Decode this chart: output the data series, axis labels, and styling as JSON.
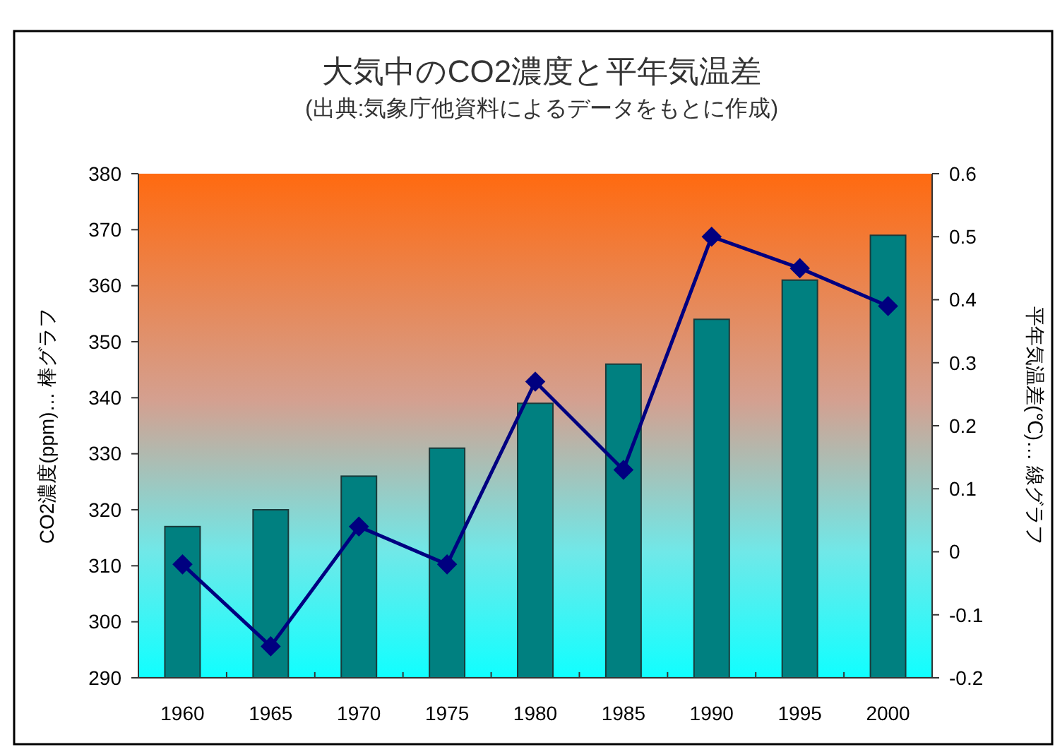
{
  "chart_data": {
    "type": "bar",
    "title": "大気中のCO2濃度と平年気温差",
    "subtitle": "(出典:気象庁他資料によるデータをもとに作成)",
    "ylabel": "CO2濃度(ppm)… 棒グラフ",
    "y2label": "平年気温差(℃)… 線グラフ",
    "categories": [
      "1960",
      "1965",
      "1970",
      "1975",
      "1980",
      "1985",
      "1990",
      "1995",
      "2000"
    ],
    "series": [
      {
        "color": "#008080",
        "values": [
          317,
          320,
          326,
          331,
          339,
          346,
          354,
          361,
          369
        ]
      },
      {
        "type": "line",
        "axis": "y2",
        "color": "#000080",
        "marker": "diamond",
        "values": [
          -0.02,
          -0.15,
          0.04,
          -0.02,
          0.27,
          0.13,
          0.5,
          0.45,
          0.39
        ]
      }
    ],
    "ylim": [
      290,
      380
    ],
    "yticks": [
      290,
      300,
      310,
      320,
      330,
      340,
      350,
      360,
      370,
      380
    ],
    "y2lim": [
      -0.2,
      0.6
    ],
    "y2ticks": [
      -0.2,
      -0.1,
      0,
      0.1,
      0.2,
      0.3,
      0.4,
      0.5,
      0.6
    ],
    "grid": false
  }
}
